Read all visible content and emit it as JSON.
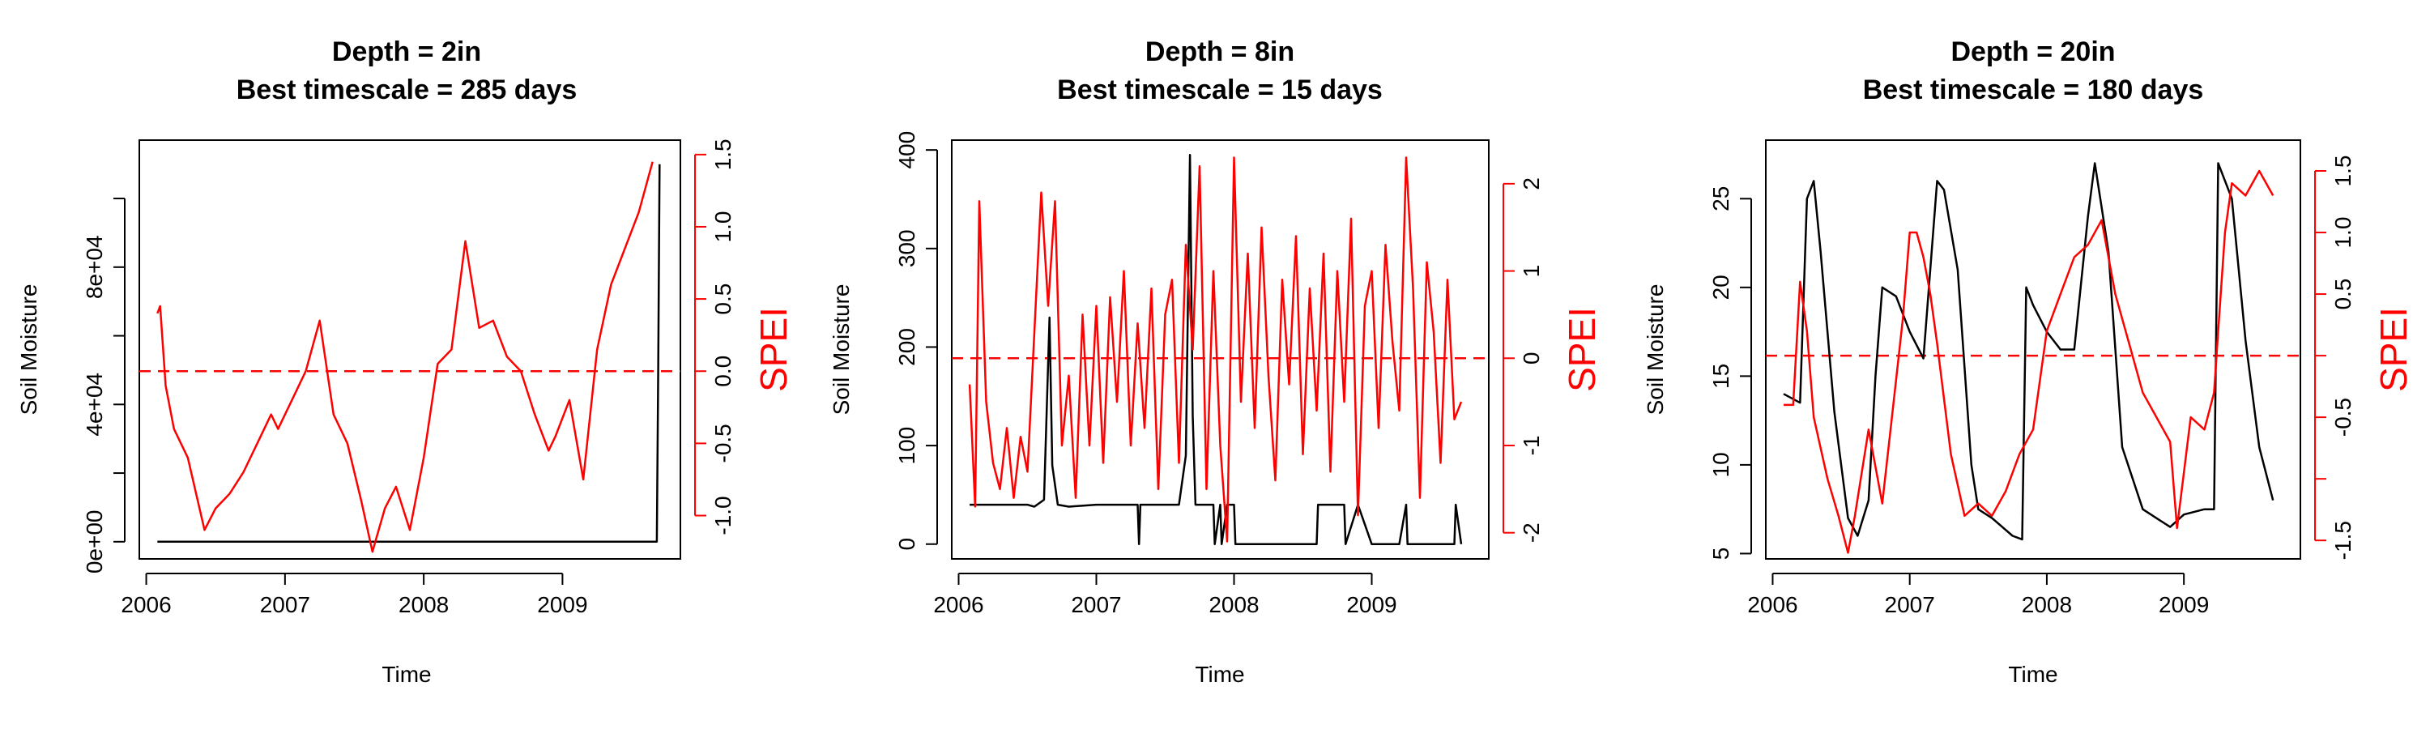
{
  "chart_data": [
    {
      "type": "line",
      "title": [
        "Depth = 2in",
        "Best timescale = 285 days"
      ],
      "xlabel": "Time",
      "ylabel": "Soil Moisture",
      "y2label": "SPEI",
      "xlim": [
        2005.95,
        2009.85
      ],
      "xticks": [
        2006,
        2007,
        2008,
        2009
      ],
      "xtick_labels": [
        "2006",
        "2007",
        "2008",
        "2009"
      ],
      "ylim": [
        -5000,
        117000
      ],
      "yticks": [
        0,
        20000,
        40000,
        60000,
        80000,
        100000
      ],
      "ytick_labels": [
        "0e+00",
        "",
        "4e+04",
        "",
        "8e+04",
        ""
      ],
      "y2lim": [
        -1.3,
        1.6
      ],
      "y2ticks": [
        -1.0,
        -0.5,
        0.0,
        0.5,
        1.0,
        1.5
      ],
      "y2tick_labels": [
        "-1.0",
        "-0.5",
        "0.0",
        "0.5",
        "1.0",
        "1.5"
      ],
      "reference_line_y2": 0,
      "colors": {
        "soil": "#000000",
        "spei": "#ff0000"
      },
      "series": [
        {
          "axis": "left",
          "color": "#000000",
          "x": [
            2006.08,
            2006.5,
            2007.0,
            2007.5,
            2008.0,
            2008.5,
            2009.0,
            2009.5,
            2009.68,
            2009.69,
            2009.7
          ],
          "values": [
            0,
            0,
            0,
            0,
            0,
            0,
            0,
            0,
            0,
            50000,
            110000
          ]
        },
        {
          "axis": "right",
          "color": "#ff0000",
          "x": [
            2006.08,
            2006.1,
            2006.14,
            2006.2,
            2006.3,
            2006.42,
            2006.5,
            2006.6,
            2006.7,
            2006.8,
            2006.9,
            2006.95,
            2007.05,
            2007.15,
            2007.25,
            2007.35,
            2007.45,
            2007.55,
            2007.63,
            2007.72,
            2007.8,
            2007.9,
            2008.0,
            2008.1,
            2008.2,
            2008.3,
            2008.4,
            2008.5,
            2008.6,
            2008.7,
            2008.8,
            2008.9,
            2008.95,
            2009.05,
            2009.15,
            2009.25,
            2009.35,
            2009.45,
            2009.55,
            2009.65
          ],
          "values": [
            0.4,
            0.45,
            -0.1,
            -0.4,
            -0.6,
            -1.1,
            -0.95,
            -0.85,
            -0.7,
            -0.5,
            -0.3,
            -0.4,
            -0.2,
            0.0,
            0.35,
            -0.3,
            -0.5,
            -0.9,
            -1.25,
            -0.95,
            -0.8,
            -1.1,
            -0.6,
            0.05,
            0.15,
            0.9,
            0.3,
            0.35,
            0.1,
            0.0,
            -0.3,
            -0.55,
            -0.45,
            -0.2,
            -0.75,
            0.15,
            0.6,
            0.85,
            1.1,
            1.45
          ]
        }
      ]
    },
    {
      "type": "line",
      "title": [
        "Depth = 8in",
        "Best timescale = 15 days"
      ],
      "xlabel": "Time",
      "ylabel": "Soil Moisture",
      "y2label": "SPEI",
      "xlim": [
        2005.95,
        2009.85
      ],
      "xticks": [
        2006,
        2007,
        2008,
        2009
      ],
      "xtick_labels": [
        "2006",
        "2007",
        "2008",
        "2009"
      ],
      "ylim": [
        -15,
        410
      ],
      "yticks": [
        0,
        100,
        200,
        300,
        400
      ],
      "ytick_labels": [
        "0",
        "100",
        "200",
        "300",
        "400"
      ],
      "y2lim": [
        -2.3,
        2.5
      ],
      "y2ticks": [
        -2,
        -1,
        0,
        1,
        2
      ],
      "y2tick_labels": [
        "-2",
        "-1",
        "0",
        "1",
        "2"
      ],
      "reference_line_y2": 0,
      "colors": {
        "soil": "#000000",
        "spei": "#ff0000"
      },
      "series": [
        {
          "axis": "left",
          "color": "#000000",
          "x": [
            2006.08,
            2006.5,
            2006.55,
            2006.62,
            2006.66,
            2006.68,
            2006.72,
            2006.8,
            2007.0,
            2007.3,
            2007.31,
            2007.32,
            2007.5,
            2007.6,
            2007.65,
            2007.68,
            2007.7,
            2007.72,
            2007.75,
            2007.8,
            2007.85,
            2007.86,
            2007.9,
            2007.91,
            2007.95,
            2008.0,
            2008.01,
            2008.1,
            2008.6,
            2008.61,
            2008.8,
            2008.81,
            2008.9,
            2009.0,
            2009.2,
            2009.25,
            2009.26,
            2009.5,
            2009.6,
            2009.61,
            2009.65
          ],
          "values": [
            40,
            40,
            38,
            45,
            230,
            80,
            40,
            38,
            40,
            40,
            0,
            40,
            40,
            40,
            90,
            395,
            130,
            40,
            40,
            40,
            40,
            0,
            40,
            0,
            40,
            40,
            0,
            0,
            0,
            40,
            40,
            0,
            40,
            0,
            0,
            40,
            0,
            0,
            0,
            40,
            0
          ]
        },
        {
          "axis": "right",
          "color": "#ff0000",
          "x": [
            2006.08,
            2006.12,
            2006.15,
            2006.2,
            2006.25,
            2006.3,
            2006.35,
            2006.4,
            2006.45,
            2006.5,
            2006.55,
            2006.6,
            2006.65,
            2006.7,
            2006.75,
            2006.8,
            2006.85,
            2006.9,
            2006.95,
            2007.0,
            2007.05,
            2007.1,
            2007.15,
            2007.2,
            2007.25,
            2007.3,
            2007.35,
            2007.4,
            2007.45,
            2007.5,
            2007.55,
            2007.6,
            2007.65,
            2007.7,
            2007.75,
            2007.8,
            2007.85,
            2007.9,
            2007.95,
            2008.0,
            2008.05,
            2008.1,
            2008.15,
            2008.2,
            2008.25,
            2008.3,
            2008.35,
            2008.4,
            2008.45,
            2008.5,
            2008.55,
            2008.6,
            2008.65,
            2008.7,
            2008.75,
            2008.8,
            2008.85,
            2008.9,
            2008.95,
            2009.0,
            2009.05,
            2009.1,
            2009.15,
            2009.2,
            2009.25,
            2009.3,
            2009.35,
            2009.4,
            2009.45,
            2009.5,
            2009.55,
            2009.6,
            2009.65
          ],
          "values": [
            -0.3,
            -1.7,
            1.8,
            -0.5,
            -1.2,
            -1.5,
            -0.8,
            -1.6,
            -0.9,
            -1.3,
            0.3,
            1.9,
            0.6,
            1.8,
            -1.0,
            -0.2,
            -1.6,
            0.5,
            -1.0,
            0.6,
            -1.2,
            0.7,
            -0.5,
            1.0,
            -1.0,
            0.4,
            -0.8,
            0.8,
            -1.5,
            0.5,
            0.9,
            -1.2,
            1.3,
            0.1,
            2.2,
            -1.5,
            1.0,
            -1.0,
            -2.1,
            2.3,
            -0.5,
            1.2,
            -0.8,
            1.5,
            -0.2,
            -1.4,
            0.9,
            -0.3,
            1.4,
            -1.1,
            0.8,
            -0.6,
            1.2,
            -1.3,
            1.0,
            -0.5,
            1.6,
            -1.8,
            0.6,
            1.0,
            -0.8,
            1.3,
            0.2,
            -0.6,
            2.3,
            0.8,
            -1.6,
            1.1,
            0.3,
            -1.2,
            0.9,
            -0.7,
            -0.5
          ]
        }
      ]
    },
    {
      "type": "line",
      "title": [
        "Depth = 20in",
        "Best timescale = 180 days"
      ],
      "xlabel": "Time",
      "ylabel": "Soil Moisture",
      "y2label": "SPEI",
      "xlim": [
        2005.95,
        2009.85
      ],
      "xticks": [
        2006,
        2007,
        2008,
        2009
      ],
      "xtick_labels": [
        "2006",
        "2007",
        "2008",
        "2009"
      ],
      "ylim": [
        4.7,
        28.3
      ],
      "yticks": [
        5,
        10,
        15,
        20,
        25
      ],
      "ytick_labels": [
        "5",
        "10",
        "15",
        "20",
        "25"
      ],
      "y2lim": [
        -1.65,
        1.75
      ],
      "y2ticks": [
        -1.5,
        -1.0,
        -0.5,
        0.0,
        0.5,
        1.0,
        1.5
      ],
      "y2tick_labels": [
        "-1.5",
        "",
        "-0.5",
        "",
        "0.5",
        "1.0",
        "1.5"
      ],
      "reference_line_y2": 0,
      "colors": {
        "soil": "#000000",
        "spei": "#ff0000"
      },
      "series": [
        {
          "axis": "left",
          "color": "#000000",
          "x": [
            2006.08,
            2006.2,
            2006.25,
            2006.3,
            2006.35,
            2006.45,
            2006.55,
            2006.62,
            2006.7,
            2006.75,
            2006.8,
            2006.9,
            2007.0,
            2007.1,
            2007.2,
            2007.25,
            2007.35,
            2007.45,
            2007.5,
            2007.6,
            2007.75,
            2007.82,
            2007.85,
            2007.9,
            2008.0,
            2008.1,
            2008.2,
            2008.3,
            2008.35,
            2008.45,
            2008.55,
            2008.7,
            2008.9,
            2009.0,
            2009.15,
            2009.22,
            2009.25,
            2009.35,
            2009.45,
            2009.55,
            2009.65
          ],
          "values": [
            14,
            13.5,
            25,
            26,
            22,
            13,
            7,
            6,
            8,
            15,
            20,
            19.5,
            17.5,
            16,
            26,
            25.5,
            21,
            10,
            7.5,
            7,
            6,
            5.8,
            20,
            19,
            17.5,
            16.5,
            16.5,
            24,
            27,
            22,
            11,
            7.5,
            6.5,
            7.2,
            7.5,
            7.5,
            27,
            25,
            17,
            11,
            8
          ]
        },
        {
          "axis": "right",
          "color": "#ff0000",
          "x": [
            2006.08,
            2006.15,
            2006.2,
            2006.25,
            2006.3,
            2006.4,
            2006.48,
            2006.55,
            2006.6,
            2006.7,
            2006.8,
            2006.9,
            2006.95,
            2007.0,
            2007.05,
            2007.1,
            2007.15,
            2007.2,
            2007.3,
            2007.4,
            2007.5,
            2007.6,
            2007.7,
            2007.8,
            2007.9,
            2008.0,
            2008.1,
            2008.2,
            2008.3,
            2008.4,
            2008.5,
            2008.6,
            2008.7,
            2008.8,
            2008.9,
            2008.95,
            2009.05,
            2009.15,
            2009.22,
            2009.25,
            2009.3,
            2009.35,
            2009.45,
            2009.55,
            2009.65
          ],
          "values": [
            -0.4,
            -0.4,
            0.6,
            0.2,
            -0.5,
            -1.0,
            -1.3,
            -1.6,
            -1.3,
            -0.6,
            -1.2,
            -0.2,
            0.3,
            1.0,
            1.0,
            0.8,
            0.5,
            0.1,
            -0.8,
            -1.3,
            -1.2,
            -1.3,
            -1.1,
            -0.8,
            -0.6,
            0.2,
            0.5,
            0.8,
            0.9,
            1.1,
            0.5,
            0.1,
            -0.3,
            -0.5,
            -0.7,
            -1.4,
            -0.5,
            -0.6,
            -0.3,
            0.2,
            1.0,
            1.4,
            1.3,
            1.5,
            1.3
          ]
        }
      ]
    }
  ]
}
